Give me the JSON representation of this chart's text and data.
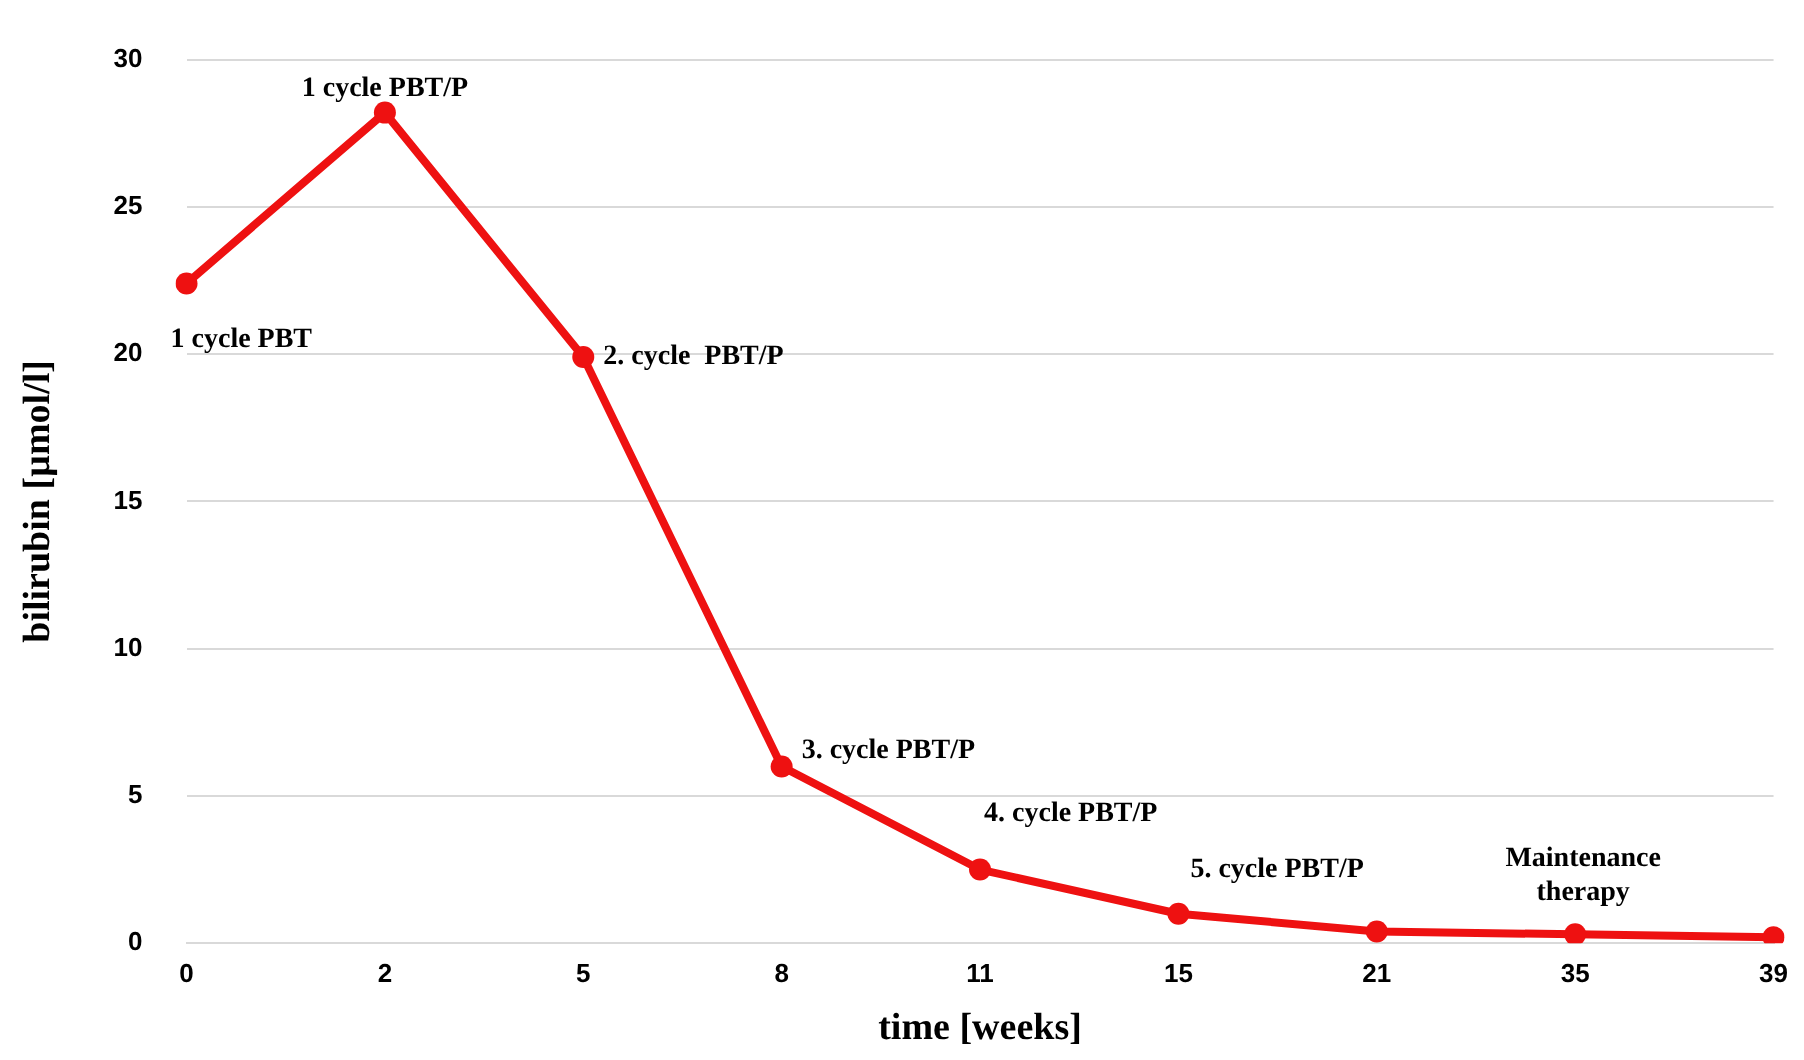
{
  "chart_data": {
    "type": "line",
    "xlabel": "time [weeks]",
    "ylabel": "bilirubin [µmol/l]",
    "categories": [
      "0",
      "2",
      "5",
      "8",
      "11",
      "15",
      "21",
      "35",
      "39"
    ],
    "values": [
      22.4,
      28.2,
      19.9,
      6.0,
      2.5,
      1.0,
      0.4,
      0.3,
      0.2
    ],
    "color": "#ee1111",
    "ylim": [
      0,
      30
    ],
    "yticks": [
      0,
      5,
      10,
      15,
      20,
      25,
      30
    ],
    "grid": "y",
    "marker": "circle",
    "line_style": "solid",
    "legend": false,
    "annotations": [
      {
        "text": "1 cycle PBT",
        "x": "0",
        "y": 22.4
      },
      {
        "text": "1 cycle PBT/P",
        "x": "2",
        "y": 28.2
      },
      {
        "text": "2. cycle  PBT/P",
        "x": "5",
        "y": 19.9
      },
      {
        "text": "3. cycle PBT/P",
        "x": "8",
        "y": 6.0
      },
      {
        "text": "4. cycle PBT/P",
        "x": "11",
        "y": 2.5
      },
      {
        "text": "5. cycle PBT/P",
        "x": "15",
        "y": 1.0
      },
      {
        "text": "Maintenance therapy",
        "x": "35",
        "y": 0.3
      }
    ]
  }
}
